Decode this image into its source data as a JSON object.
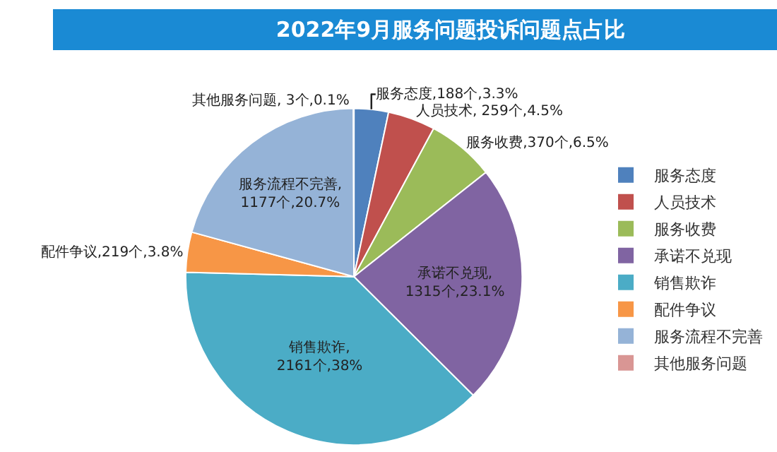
{
  "chart_data": {
    "type": "pie",
    "title": "2022年9月服务问题投诉问题点占比",
    "categories": [
      "服务态度",
      "人员技术",
      "服务收费",
      "承诺不兑现",
      "销售欺诈",
      "配件争议",
      "服务流程不完善",
      "其他服务问题"
    ],
    "values": [
      188,
      259,
      370,
      1315,
      2161,
      219,
      1177,
      3
    ],
    "colors": [
      "#4f81bd",
      "#c0504d",
      "#9bbb59",
      "#8064a2",
      "#4bacc6",
      "#f79646",
      "#95b3d7",
      "#d99694"
    ],
    "value_labels": [
      "服务态度,188个,3.3%",
      "人员技术, 259个,4.5%",
      "服务收费,370个,6.5%",
      "承诺不兑现,\n1315个,23.1%",
      "销售欺诈,\n2161个,38%",
      "配件争议,219个,3.8%",
      "服务流程不完善,\n1177个,20.7%",
      "其他服务问题, 3个,0.1%"
    ],
    "legend": "right"
  }
}
